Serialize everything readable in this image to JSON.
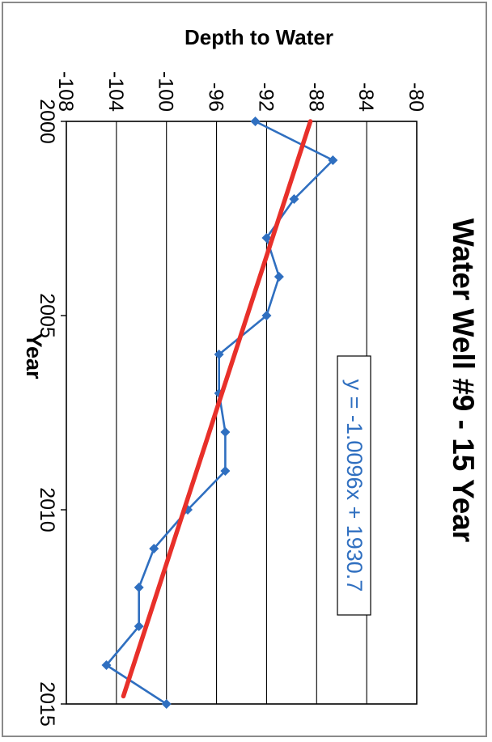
{
  "chart_data": {
    "type": "line",
    "title": "Water Well #9 - 15 Year",
    "xlabel": "Year",
    "ylabel": "Depth to Water",
    "xlim": [
      2000,
      2015
    ],
    "ylim": [
      -108,
      -80
    ],
    "x_ticks": [
      2000,
      2005,
      2010,
      2015
    ],
    "y_ticks": [
      -108,
      -104,
      -100,
      -96,
      -92,
      -88,
      -84,
      -80
    ],
    "grid": true,
    "orientation": "rotated 90 degrees clockwise",
    "series": [
      {
        "color": "#2f6fc0",
        "marker": "diamond",
        "x": [
          2000.0,
          2001.0,
          2002.0,
          2003.0,
          2004.0,
          2005.0,
          2006.0,
          2007.0,
          2008.0,
          2009.0,
          2010.0,
          2011.0,
          2012.0,
          2013.0,
          2014.0,
          2015.0
        ],
        "y": [
          -92.9,
          -86.7,
          -89.8,
          -92.0,
          -91.0,
          -92.0,
          -95.8,
          -95.8,
          -95.3,
          -95.3,
          -98.3,
          -101.0,
          -102.2,
          -102.2,
          -104.8,
          -100.0
        ]
      }
    ],
    "trendline": {
      "color": "#e8302a",
      "equation": "y = -1.0096x + 1930.7",
      "slope": -1.0096,
      "intercept": 1930.7
    }
  }
}
